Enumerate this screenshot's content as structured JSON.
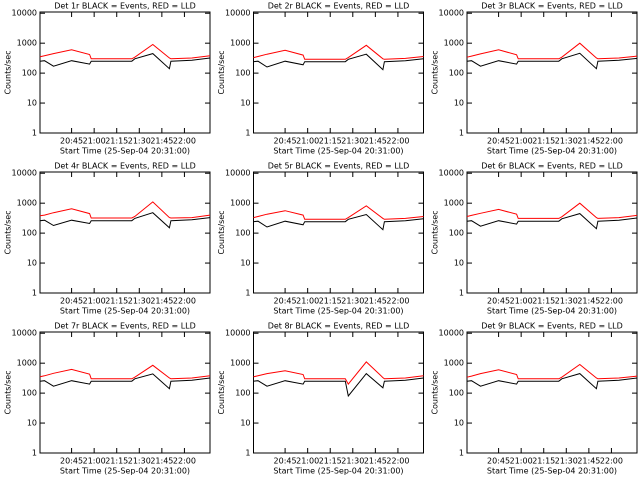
{
  "chart_data": [
    {
      "type": "line",
      "title": "Det 1r BLACK = Events, RED = LLD",
      "xlabel": "Start Time (25-Sep-04 20:31:00)",
      "ylabel": "Counts/sec",
      "log_y": true,
      "x": [
        "20:24",
        "20:27",
        "20:33",
        "20:45",
        "20:57",
        "20:58",
        "21:10",
        "21:25",
        "21:27",
        "21:39",
        "21:50",
        "21:51",
        "22:05",
        "22:17"
      ],
      "series": [
        {
          "name": "LLD",
          "color": "#ff0000",
          "values": [
            350,
            380,
            450,
            600,
            420,
            300,
            300,
            300,
            340,
            900,
            320,
            300,
            320,
            380
          ]
        },
        {
          "name": "Events",
          "color": "#000000",
          "values": [
            250,
            260,
            170,
            260,
            200,
            250,
            250,
            250,
            300,
            450,
            140,
            250,
            270,
            320
          ]
        }
      ],
      "xlim": [
        "20:24",
        "22:17"
      ],
      "xticks": [
        "20:45",
        "21:00",
        "21:15",
        "21:30",
        "21:45",
        "22:00"
      ],
      "ylim": [
        1,
        11000
      ],
      "yticks": [
        1,
        10,
        100,
        1000,
        10000
      ]
    },
    {
      "type": "line",
      "title": "Det 2r BLACK = Events, RED = LLD",
      "xlabel": "Start Time (25-Sep-04 20:31:00)",
      "ylabel": "Counts/sec",
      "log_y": true,
      "x": [
        "20:24",
        "20:27",
        "20:33",
        "20:45",
        "20:57",
        "20:58",
        "21:10",
        "21:25",
        "21:27",
        "21:39",
        "21:50",
        "21:51",
        "22:05",
        "22:17"
      ],
      "series": [
        {
          "name": "LLD",
          "color": "#ff0000",
          "values": [
            330,
            360,
            430,
            580,
            400,
            290,
            290,
            290,
            330,
            850,
            300,
            290,
            310,
            360
          ]
        },
        {
          "name": "Events",
          "color": "#000000",
          "values": [
            240,
            250,
            160,
            250,
            190,
            240,
            240,
            240,
            290,
            430,
            130,
            240,
            260,
            300
          ]
        }
      ],
      "xlim": [
        "20:24",
        "22:17"
      ],
      "xticks": [
        "20:45",
        "21:00",
        "21:15",
        "21:30",
        "21:45",
        "22:00"
      ],
      "ylim": [
        1,
        11000
      ],
      "yticks": [
        1,
        10,
        100,
        1000,
        10000
      ]
    },
    {
      "type": "line",
      "title": "Det 3r BLACK = Events, RED = LLD",
      "xlabel": "Start Time (25-Sep-04 20:31:00)",
      "ylabel": "Counts/sec",
      "log_y": true,
      "x": [
        "20:24",
        "20:27",
        "20:33",
        "20:45",
        "20:57",
        "20:58",
        "21:10",
        "21:25",
        "21:27",
        "21:39",
        "21:50",
        "21:51",
        "22:05",
        "22:17"
      ],
      "series": [
        {
          "name": "LLD",
          "color": "#ff0000",
          "values": [
            340,
            370,
            440,
            600,
            410,
            300,
            300,
            300,
            340,
            1000,
            320,
            300,
            320,
            370
          ]
        },
        {
          "name": "Events",
          "color": "#000000",
          "values": [
            250,
            260,
            170,
            260,
            200,
            250,
            250,
            250,
            300,
            460,
            140,
            250,
            270,
            310
          ]
        }
      ],
      "xlim": [
        "20:24",
        "22:17"
      ],
      "xticks": [
        "20:45",
        "21:00",
        "21:15",
        "21:30",
        "21:45",
        "22:00"
      ],
      "ylim": [
        1,
        11000
      ],
      "yticks": [
        1,
        10,
        100,
        1000,
        10000
      ]
    },
    {
      "type": "line",
      "title": "Det 4r BLACK = Events, RED = LLD",
      "xlabel": "Start Time (25-Sep-04 20:31:00)",
      "ylabel": "Counts/sec",
      "log_y": true,
      "x": [
        "20:24",
        "20:27",
        "20:33",
        "20:45",
        "20:57",
        "20:58",
        "21:10",
        "21:25",
        "21:27",
        "21:39",
        "21:50",
        "21:51",
        "22:05",
        "22:17"
      ],
      "series": [
        {
          "name": "LLD",
          "color": "#ff0000",
          "values": [
            380,
            400,
            480,
            650,
            450,
            320,
            320,
            320,
            360,
            1100,
            330,
            320,
            330,
            400
          ]
        },
        {
          "name": "Events",
          "color": "#000000",
          "values": [
            260,
            270,
            180,
            270,
            210,
            260,
            260,
            260,
            310,
            480,
            150,
            260,
            280,
            330
          ]
        }
      ],
      "xlim": [
        "20:24",
        "22:17"
      ],
      "xticks": [
        "20:45",
        "21:00",
        "21:15",
        "21:30",
        "21:45",
        "22:00"
      ],
      "ylim": [
        1,
        11000
      ],
      "yticks": [
        1,
        10,
        100,
        1000,
        10000
      ]
    },
    {
      "type": "line",
      "title": "Det 5r BLACK = Events, RED = LLD",
      "xlabel": "Start Time (25-Sep-04 20:31:00)",
      "ylabel": "Counts/sec",
      "log_y": true,
      "x": [
        "20:24",
        "20:27",
        "20:33",
        "20:45",
        "20:57",
        "20:58",
        "21:10",
        "21:25",
        "21:27",
        "21:39",
        "21:50",
        "21:51",
        "22:05",
        "22:17"
      ],
      "series": [
        {
          "name": "LLD",
          "color": "#ff0000",
          "values": [
            330,
            360,
            430,
            560,
            400,
            290,
            290,
            290,
            330,
            820,
            310,
            290,
            310,
            360
          ]
        },
        {
          "name": "Events",
          "color": "#000000",
          "values": [
            240,
            250,
            160,
            250,
            190,
            240,
            240,
            240,
            290,
            420,
            130,
            240,
            260,
            300
          ]
        }
      ],
      "xlim": [
        "20:24",
        "22:17"
      ],
      "xticks": [
        "20:45",
        "21:00",
        "21:15",
        "21:30",
        "21:45",
        "22:00"
      ],
      "ylim": [
        1,
        11000
      ],
      "yticks": [
        1,
        10,
        100,
        1000,
        10000
      ]
    },
    {
      "type": "line",
      "title": "Det 6r BLACK = Events, RED = LLD",
      "xlabel": "Start Time (25-Sep-04 20:31:00)",
      "ylabel": "Counts/sec",
      "log_y": true,
      "x": [
        "20:24",
        "20:27",
        "20:33",
        "20:45",
        "20:57",
        "20:58",
        "21:10",
        "21:25",
        "21:27",
        "21:39",
        "21:50",
        "21:51",
        "22:05",
        "22:17"
      ],
      "series": [
        {
          "name": "LLD",
          "color": "#ff0000",
          "values": [
            360,
            390,
            460,
            620,
            430,
            310,
            310,
            310,
            350,
            1000,
            330,
            310,
            330,
            390
          ]
        },
        {
          "name": "Events",
          "color": "#000000",
          "values": [
            250,
            260,
            170,
            260,
            200,
            250,
            250,
            250,
            300,
            450,
            140,
            250,
            270,
            320
          ]
        }
      ],
      "xlim": [
        "20:24",
        "22:17"
      ],
      "xticks": [
        "20:45",
        "21:00",
        "21:15",
        "21:30",
        "21:45",
        "22:00"
      ],
      "ylim": [
        1,
        11000
      ],
      "yticks": [
        1,
        10,
        100,
        1000,
        10000
      ]
    },
    {
      "type": "line",
      "title": "Det 7r BLACK = Events, RED = LLD",
      "xlabel": "Start Time (25-Sep-04 20:31:00)",
      "ylabel": "Counts/sec",
      "log_y": true,
      "x": [
        "20:24",
        "20:27",
        "20:33",
        "20:45",
        "20:57",
        "20:58",
        "21:10",
        "21:25",
        "21:27",
        "21:39",
        "21:50",
        "21:51",
        "22:05",
        "22:17"
      ],
      "series": [
        {
          "name": "LLD",
          "color": "#ff0000",
          "values": [
            350,
            380,
            460,
            620,
            430,
            300,
            300,
            300,
            340,
            850,
            320,
            300,
            320,
            380
          ]
        },
        {
          "name": "Events",
          "color": "#000000",
          "values": [
            250,
            260,
            170,
            260,
            200,
            250,
            250,
            250,
            300,
            440,
            140,
            250,
            270,
            320
          ]
        }
      ],
      "xlim": [
        "20:24",
        "22:17"
      ],
      "xticks": [
        "20:45",
        "21:00",
        "21:15",
        "21:30",
        "21:45",
        "22:00"
      ],
      "ylim": [
        1,
        11000
      ],
      "yticks": [
        1,
        10,
        100,
        1000,
        10000
      ]
    },
    {
      "type": "line",
      "title": "Det 8r BLACK = Events, RED = LLD",
      "xlabel": "Start Time (25-Sep-04 20:31:00)",
      "ylabel": "Counts/sec",
      "log_y": true,
      "x": [
        "20:24",
        "20:27",
        "20:33",
        "20:45",
        "20:57",
        "20:58",
        "21:10",
        "21:25",
        "21:27",
        "21:39",
        "21:50",
        "21:51",
        "22:05",
        "22:17"
      ],
      "series": [
        {
          "name": "LLD",
          "color": "#ff0000",
          "values": [
            350,
            380,
            450,
            560,
            420,
            300,
            300,
            300,
            200,
            1100,
            330,
            300,
            320,
            380
          ]
        },
        {
          "name": "Events",
          "color": "#000000",
          "values": [
            250,
            260,
            170,
            260,
            200,
            250,
            250,
            250,
            80,
            450,
            150,
            250,
            270,
            320
          ]
        }
      ],
      "xlim": [
        "20:24",
        "22:17"
      ],
      "xticks": [
        "20:45",
        "21:00",
        "21:15",
        "21:30",
        "21:45",
        "22:00"
      ],
      "ylim": [
        1,
        11000
      ],
      "yticks": [
        1,
        10,
        100,
        1000,
        10000
      ]
    },
    {
      "type": "line",
      "title": "Det 9r BLACK = Events, RED = LLD",
      "xlabel": "Start Time (25-Sep-04 20:31:00)",
      "ylabel": "Counts/sec",
      "log_y": true,
      "x": [
        "20:24",
        "20:27",
        "20:33",
        "20:45",
        "20:57",
        "20:58",
        "21:10",
        "21:25",
        "21:27",
        "21:39",
        "21:50",
        "21:51",
        "22:05",
        "22:17"
      ],
      "series": [
        {
          "name": "LLD",
          "color": "#ff0000",
          "values": [
            340,
            370,
            450,
            600,
            420,
            300,
            300,
            300,
            340,
            900,
            320,
            300,
            320,
            370
          ]
        },
        {
          "name": "Events",
          "color": "#000000",
          "values": [
            250,
            260,
            170,
            260,
            200,
            250,
            250,
            250,
            300,
            450,
            140,
            250,
            270,
            320
          ]
        }
      ],
      "xlim": [
        "20:24",
        "22:17"
      ],
      "xticks": [
        "20:45",
        "21:00",
        "21:15",
        "21:30",
        "21:45",
        "22:00"
      ],
      "ylim": [
        1,
        11000
      ],
      "yticks": [
        1,
        10,
        100,
        1000,
        10000
      ]
    }
  ]
}
